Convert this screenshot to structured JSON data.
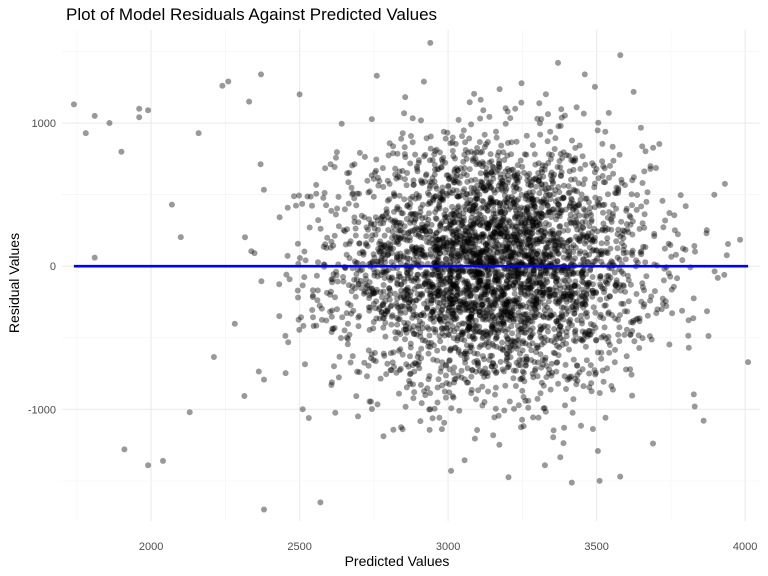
{
  "chart_data": {
    "type": "scatter",
    "title": "Plot of Model Residuals Against Predicted Values",
    "xlabel": "Predicted Values",
    "ylabel": "Residual Values",
    "xlim": [
      1700,
      4050
    ],
    "ylim": [
      -1780,
      1650
    ],
    "x_ticks": [
      2000,
      2500,
      3000,
      3500,
      4000
    ],
    "x_tick_labels": [
      "2000",
      "2500",
      "3000",
      "3500",
      "4000"
    ],
    "y_ticks": [
      -1000,
      0,
      1000
    ],
    "y_tick_labels": [
      "-1000",
      "0",
      "1000"
    ],
    "grid": true,
    "point_color": "#000000",
    "point_alpha": 0.4,
    "reference_line": {
      "y": 0,
      "x_range": [
        1740,
        4010
      ],
      "color": "#0000ff"
    },
    "center": {
      "x": 3150,
      "y": 0
    },
    "spread": {
      "x": 260,
      "y": 430
    },
    "n_points": 3800,
    "points": [
      {
        "x": 1740,
        "y": 1130
      },
      {
        "x": 1780,
        "y": 930
      },
      {
        "x": 1810,
        "y": 1050
      },
      {
        "x": 1860,
        "y": 1000
      },
      {
        "x": 1900,
        "y": 800
      },
      {
        "x": 1960,
        "y": 1100
      },
      {
        "x": 1960,
        "y": 1040
      },
      {
        "x": 1990,
        "y": 1090
      },
      {
        "x": 1810,
        "y": 60
      },
      {
        "x": 1910,
        "y": -1280
      },
      {
        "x": 1990,
        "y": -1390
      },
      {
        "x": 2040,
        "y": -1360
      },
      {
        "x": 2070,
        "y": 430
      },
      {
        "x": 2130,
        "y": -1020
      },
      {
        "x": 2160,
        "y": 930
      },
      {
        "x": 2240,
        "y": 1260
      },
      {
        "x": 2260,
        "y": 1290
      },
      {
        "x": 2330,
        "y": 1150
      },
      {
        "x": 2370,
        "y": 1340
      },
      {
        "x": 2500,
        "y": 1200
      },
      {
        "x": 2380,
        "y": -1700
      },
      {
        "x": 2570,
        "y": -1650
      },
      {
        "x": 2940,
        "y": 1560
      },
      {
        "x": 3370,
        "y": 1420
      },
      {
        "x": 3010,
        "y": -1430
      },
      {
        "x": 3510,
        "y": -1500
      },
      {
        "x": 4010,
        "y": -670
      },
      {
        "x": 3870,
        "y": 230
      },
      {
        "x": 3860,
        "y": -1080
      },
      {
        "x": 3830,
        "y": -980
      },
      {
        "x": 3800,
        "y": 420
      },
      {
        "x": 3460,
        "y": 1340
      },
      {
        "x": 2760,
        "y": 1330
      }
    ]
  }
}
